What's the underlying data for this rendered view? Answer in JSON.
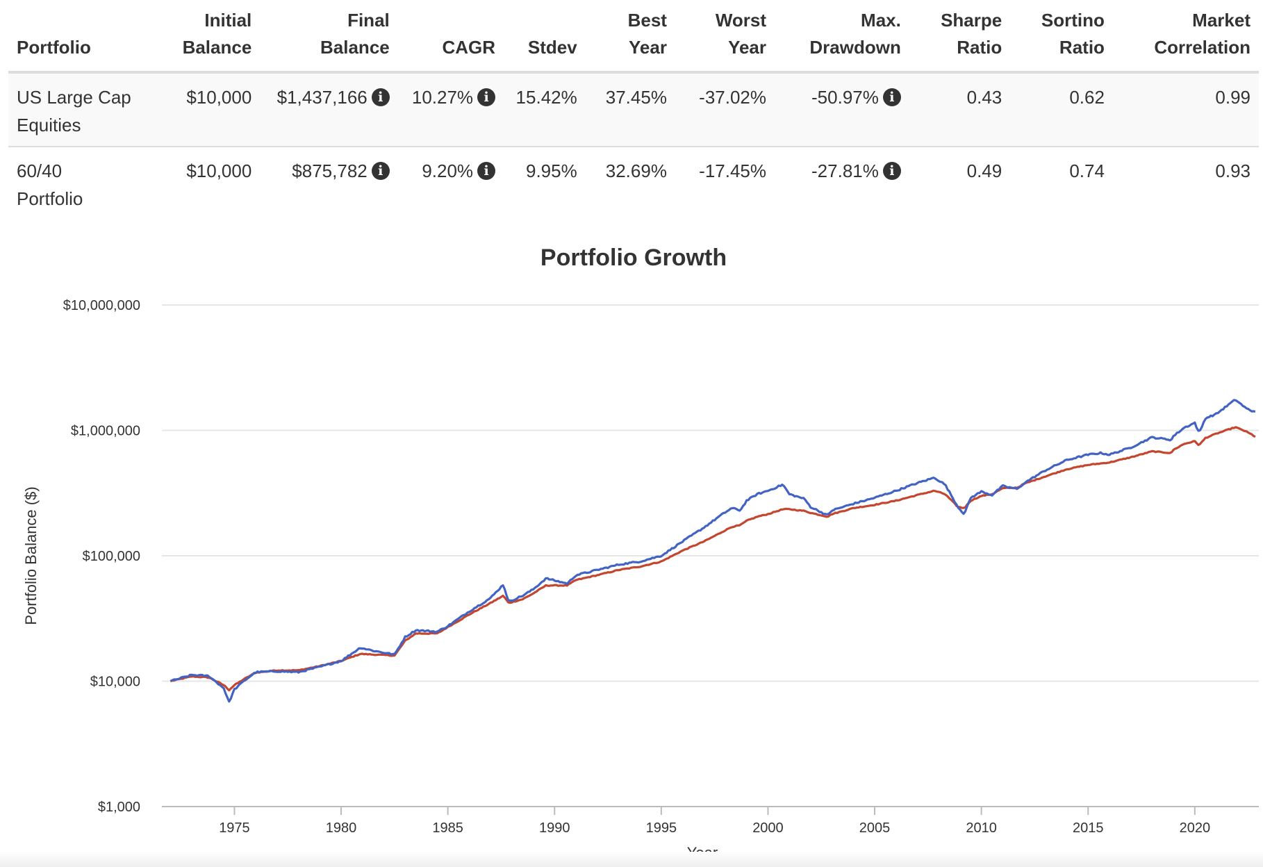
{
  "table": {
    "headers": [
      [
        "",
        "Portfolio"
      ],
      [
        "Initial",
        "Balance"
      ],
      [
        "Final",
        "Balance"
      ],
      [
        "",
        "CAGR"
      ],
      [
        "",
        "Stdev"
      ],
      [
        "Best",
        "Year"
      ],
      [
        "Worst",
        "Year"
      ],
      [
        "Max.",
        "Drawdown"
      ],
      [
        "Sharpe",
        "Ratio"
      ],
      [
        "Sortino",
        "Ratio"
      ],
      [
        "Market",
        "Correlation"
      ]
    ],
    "rows": [
      {
        "portfolio": [
          "US Large Cap",
          "Equities"
        ],
        "initial_balance": "$10,000",
        "final_balance": "$1,437,166",
        "cagr": "10.27%",
        "stdev": "15.42%",
        "best_year": "37.45%",
        "worst_year": "-37.02%",
        "max_drawdown": "-50.97%",
        "sharpe": "0.43",
        "sortino": "0.62",
        "market_correlation": "0.99"
      },
      {
        "portfolio": [
          "60/40",
          "Portfolio"
        ],
        "initial_balance": "$10,000",
        "final_balance": "$875,782",
        "cagr": "9.20%",
        "stdev": "9.95%",
        "best_year": "32.69%",
        "worst_year": "-17.45%",
        "max_drawdown": "-27.81%",
        "sharpe": "0.49",
        "sortino": "0.74",
        "market_correlation": "0.93"
      }
    ],
    "info_glyph": "i"
  },
  "chart_data": {
    "type": "line",
    "title": "Portfolio Growth",
    "xlabel": "Year",
    "ylabel": "Portfolio Balance ($)",
    "y_scale": "log",
    "ylim": [
      1000,
      10000000
    ],
    "xlim": [
      1971.6,
      2023.0
    ],
    "y_ticks": [
      1000,
      10000,
      100000,
      1000000,
      10000000
    ],
    "y_tick_labels": [
      "$1,000",
      "$10,000",
      "$100,000",
      "$1,000,000",
      "$10,000,000"
    ],
    "x_ticks": [
      1975,
      1980,
      1985,
      1990,
      1995,
      2000,
      2005,
      2010,
      2015,
      2020
    ],
    "x_tick_labels": [
      "1975",
      "1980",
      "1985",
      "1990",
      "1995",
      "2000",
      "2005",
      "2010",
      "2015",
      "2020"
    ],
    "grid": true,
    "series": [
      {
        "name": "US Large Cap Equities",
        "color": "#4363c4",
        "x": [
          1972.0,
          1973.0,
          1973.8,
          1974.5,
          1974.75,
          1975.0,
          1975.5,
          1976.0,
          1977.0,
          1978.0,
          1979.0,
          1980.0,
          1980.9,
          1981.5,
          1982.5,
          1983.0,
          1983.5,
          1984.5,
          1985.0,
          1986.0,
          1987.0,
          1987.6,
          1987.85,
          1988.5,
          1989.0,
          1989.6,
          1990.6,
          1991.0,
          1992.0,
          1993.0,
          1994.0,
          1995.0,
          1996.0,
          1997.0,
          1997.7,
          1998.3,
          1998.7,
          1999.0,
          1999.5,
          2000.0,
          2000.7,
          2001.0,
          2001.7,
          2002.0,
          2002.8,
          2003.0,
          2004.0,
          2005.0,
          2006.0,
          2007.0,
          2007.8,
          2008.3,
          2008.9,
          2009.2,
          2009.5,
          2010.0,
          2010.5,
          2011.0,
          2011.7,
          2012.0,
          2013.0,
          2014.0,
          2015.0,
          2015.6,
          2016.0,
          2017.0,
          2018.0,
          2018.9,
          2019.0,
          2019.5,
          2020.0,
          2020.2,
          2020.5,
          2021.0,
          2021.9,
          2022.4,
          2022.7,
          2022.9
        ],
        "values": [
          10000,
          11200,
          11000,
          8800,
          6800,
          8600,
          10200,
          11800,
          12000,
          11800,
          13000,
          14500,
          18500,
          17500,
          16300,
          22500,
          25500,
          24800,
          27500,
          36000,
          46000,
          59000,
          43000,
          48000,
          54000,
          66000,
          60000,
          70000,
          77000,
          85000,
          90000,
          100000,
          130000,
          168000,
          205000,
          240000,
          230000,
          275000,
          310000,
          330000,
          370000,
          310000,
          285000,
          245000,
          210000,
          230000,
          260000,
          290000,
          330000,
          380000,
          420000,
          370000,
          245000,
          215000,
          290000,
          325000,
          305000,
          360000,
          340000,
          380000,
          480000,
          580000,
          640000,
          660000,
          640000,
          730000,
          880000,
          840000,
          900000,
          1050000,
          1150000,
          950000,
          1250000,
          1350000,
          1760000,
          1500000,
          1420000,
          1437166
        ]
      },
      {
        "name": "60/40 Portfolio",
        "color": "#c4462f",
        "x": [
          1972.0,
          1973.0,
          1973.8,
          1974.5,
          1974.75,
          1975.0,
          1975.5,
          1976.0,
          1977.0,
          1978.0,
          1979.0,
          1980.0,
          1980.9,
          1981.5,
          1982.5,
          1983.0,
          1983.5,
          1984.5,
          1985.0,
          1986.0,
          1987.0,
          1987.6,
          1987.85,
          1988.5,
          1989.0,
          1989.6,
          1990.6,
          1991.0,
          1992.0,
          1993.0,
          1994.0,
          1995.0,
          1996.0,
          1997.0,
          1997.7,
          1998.3,
          1998.7,
          1999.0,
          1999.5,
          2000.0,
          2000.7,
          2001.0,
          2001.7,
          2002.0,
          2002.8,
          2003.0,
          2004.0,
          2005.0,
          2006.0,
          2007.0,
          2007.8,
          2008.3,
          2008.9,
          2009.2,
          2009.5,
          2010.0,
          2010.5,
          2011.0,
          2011.7,
          2012.0,
          2013.0,
          2014.0,
          2015.0,
          2015.6,
          2016.0,
          2017.0,
          2018.0,
          2018.9,
          2019.0,
          2019.5,
          2020.0,
          2020.2,
          2020.5,
          2021.0,
          2021.9,
          2022.4,
          2022.7,
          2022.9
        ],
        "values": [
          10000,
          10900,
          10700,
          9300,
          8500,
          9300,
          10500,
          11700,
          12200,
          12200,
          13200,
          14500,
          16500,
          16300,
          16000,
          21000,
          24000,
          24000,
          27000,
          34000,
          42000,
          48000,
          42000,
          45000,
          50000,
          58000,
          58000,
          64000,
          70000,
          77000,
          82000,
          90000,
          110000,
          130000,
          150000,
          170000,
          175000,
          190000,
          205000,
          215000,
          235000,
          235000,
          228000,
          220000,
          205000,
          215000,
          240000,
          255000,
          275000,
          305000,
          330000,
          310000,
          245000,
          240000,
          275000,
          300000,
          310000,
          345000,
          350000,
          375000,
          430000,
          490000,
          530000,
          545000,
          555000,
          610000,
          680000,
          660000,
          700000,
          780000,
          820000,
          760000,
          870000,
          940000,
          1060000,
          980000,
          920000,
          875782
        ]
      }
    ]
  }
}
